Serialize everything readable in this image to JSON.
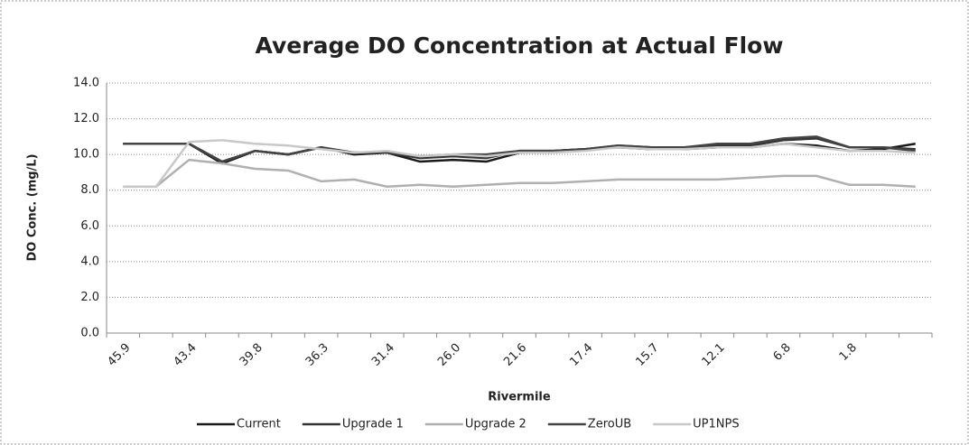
{
  "chart_data": {
    "type": "line",
    "title": "Average DO Concentration at Actual Flow",
    "xlabel": "Rivermile",
    "ylabel": "DO Conc. (mg/L)",
    "categories": [
      "45.9",
      null,
      "43.4",
      null,
      "39.8",
      null,
      "36.3",
      null,
      "31.4",
      null,
      "26.0",
      null,
      "21.6",
      null,
      "17.4",
      null,
      "15.7",
      null,
      "12.1",
      null,
      "6.8",
      null,
      "1.8",
      null,
      null
    ],
    "series": [
      {
        "name": "Current",
        "color": "#1a1a1a",
        "values": [
          10.6,
          10.6,
          10.6,
          9.5,
          10.2,
          10.0,
          10.4,
          10.0,
          10.1,
          9.6,
          9.7,
          9.6,
          10.1,
          10.2,
          10.3,
          10.4,
          10.3,
          10.3,
          10.4,
          10.4,
          10.6,
          10.5,
          10.2,
          10.3,
          10.6
        ]
      },
      {
        "name": "Upgrade 1",
        "color": "#333333",
        "values": [
          10.6,
          10.6,
          10.6,
          9.6,
          10.2,
          10.0,
          10.4,
          10.1,
          10.1,
          9.8,
          9.9,
          9.8,
          10.2,
          10.2,
          10.3,
          10.5,
          10.4,
          10.4,
          10.5,
          10.5,
          10.8,
          10.9,
          10.4,
          10.4,
          10.3
        ]
      },
      {
        "name": "Upgrade 2",
        "color": "#b0b0b0",
        "values": [
          8.2,
          8.2,
          9.7,
          9.5,
          9.2,
          9.1,
          8.5,
          8.6,
          8.2,
          8.3,
          8.2,
          8.3,
          8.4,
          8.4,
          8.5,
          8.6,
          8.6,
          8.6,
          8.6,
          8.7,
          8.8,
          8.8,
          8.3,
          8.3,
          8.2
        ]
      },
      {
        "name": "ZeroUB",
        "color": "#444444",
        "values": [
          10.6,
          10.6,
          10.6,
          9.6,
          10.2,
          10.0,
          10.4,
          10.1,
          10.1,
          9.9,
          10.0,
          10.0,
          10.2,
          10.2,
          10.3,
          10.5,
          10.4,
          10.4,
          10.6,
          10.6,
          10.9,
          11.0,
          10.4,
          10.4,
          10.2
        ]
      },
      {
        "name": "UP1NPS",
        "color": "#c8c8c8",
        "values": [
          8.2,
          8.2,
          10.7,
          10.8,
          10.6,
          10.5,
          10.3,
          10.1,
          10.2,
          9.9,
          10.0,
          9.9,
          10.1,
          10.1,
          10.2,
          10.4,
          10.3,
          10.3,
          10.4,
          10.4,
          10.6,
          10.4,
          10.2,
          10.2,
          10.1
        ]
      }
    ],
    "ylim": [
      0,
      14
    ],
    "yticks": [
      {
        "value": 0,
        "label": "0.0"
      },
      {
        "value": 2,
        "label": "2.0"
      },
      {
        "value": 4,
        "label": "4.0"
      },
      {
        "value": 6,
        "label": "6.0"
      },
      {
        "value": 8,
        "label": "8.0"
      },
      {
        "value": 10,
        "label": "10.0"
      },
      {
        "value": 12,
        "label": "12.0"
      },
      {
        "value": 14,
        "label": "14.0"
      }
    ],
    "grid": true,
    "legend": "bottom"
  }
}
